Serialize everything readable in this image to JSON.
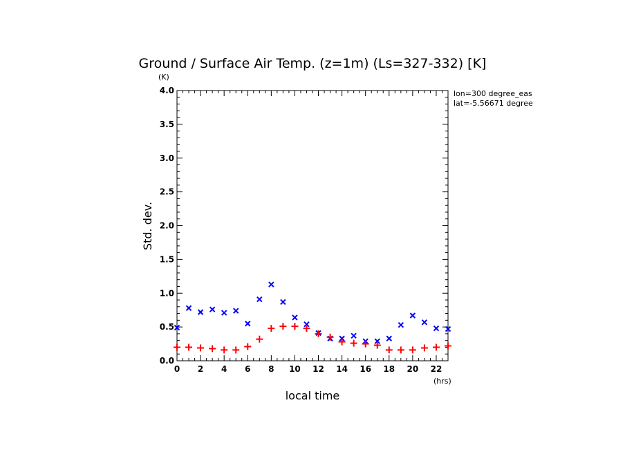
{
  "chart_data": {
    "type": "scatter",
    "title": "Ground / Surface Air Temp. (z=1m) (Ls=327-332) [K]",
    "xlabel": "local time",
    "ylabel": "Std. dev.",
    "x_unit": "(hrs)",
    "y_unit": "(K)",
    "xlim": [
      0,
      23
    ],
    "ylim": [
      0,
      4.0
    ],
    "x_ticks": [
      0,
      2,
      4,
      6,
      8,
      10,
      12,
      14,
      16,
      18,
      20,
      22
    ],
    "y_ticks": [
      0.0,
      0.5,
      1.0,
      1.5,
      2.0,
      2.5,
      3.0,
      3.5,
      4.0
    ],
    "x_tick_labels": [
      "0",
      "2",
      "4",
      "6",
      "8",
      "10",
      "12",
      "14",
      "16",
      "18",
      "20",
      "22"
    ],
    "y_tick_labels": [
      "0.0",
      "0.5",
      "1.0",
      "1.5",
      "2.0",
      "2.5",
      "3.0",
      "3.5",
      "4.0"
    ],
    "annotations": [
      "lon=300 degree_eas",
      "lat=-5.56671 degree"
    ],
    "series": [
      {
        "marker": "x",
        "color": "#0000ff",
        "x": [
          0,
          1,
          2,
          3,
          4,
          5,
          6,
          7,
          8,
          9,
          10,
          11,
          12,
          13,
          14,
          15,
          16,
          17,
          18,
          19,
          20,
          21,
          22,
          23
        ],
        "values": [
          0.49,
          0.78,
          0.72,
          0.76,
          0.71,
          0.74,
          0.55,
          0.91,
          1.13,
          0.87,
          0.64,
          0.54,
          0.41,
          0.33,
          0.33,
          0.37,
          0.29,
          0.29,
          0.33,
          0.53,
          0.67,
          0.57,
          0.48,
          0.47
        ]
      },
      {
        "marker": "+",
        "color": "#ff0000",
        "x": [
          0,
          1,
          2,
          3,
          4,
          5,
          6,
          7,
          8,
          9,
          10,
          11,
          12,
          13,
          14,
          15,
          16,
          17,
          18,
          19,
          20,
          21,
          22,
          23
        ],
        "values": [
          0.2,
          0.2,
          0.19,
          0.18,
          0.16,
          0.16,
          0.21,
          0.32,
          0.48,
          0.51,
          0.51,
          0.48,
          0.4,
          0.35,
          0.28,
          0.26,
          0.25,
          0.23,
          0.16,
          0.16,
          0.16,
          0.19,
          0.2,
          0.22
        ]
      }
    ]
  }
}
